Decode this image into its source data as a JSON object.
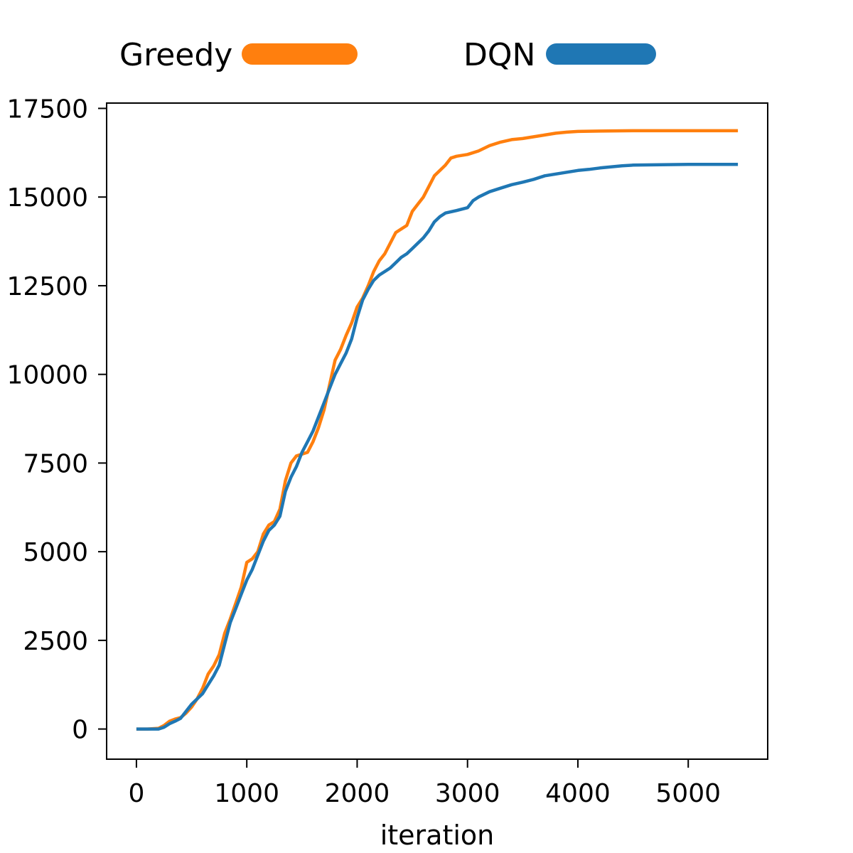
{
  "chart_data": {
    "type": "line",
    "title": "",
    "xlabel": "iteration",
    "ylabel": "",
    "xlim": [
      -270,
      5720
    ],
    "ylim": [
      -850,
      17650
    ],
    "xticks": [
      0,
      1000,
      2000,
      3000,
      4000,
      5000
    ],
    "yticks": [
      0,
      2500,
      5000,
      7500,
      10000,
      12500,
      15000,
      17500
    ],
    "grid": false,
    "legend": "top, outside plot area, horizontal",
    "series": [
      {
        "name": "Greedy",
        "color": "#ff7f0e",
        "points": [
          [
            0,
            0
          ],
          [
            100,
            0
          ],
          [
            200,
            20
          ],
          [
            250,
            100
          ],
          [
            300,
            220
          ],
          [
            350,
            280
          ],
          [
            400,
            320
          ],
          [
            450,
            450
          ],
          [
            500,
            620
          ],
          [
            550,
            850
          ],
          [
            600,
            1150
          ],
          [
            650,
            1550
          ],
          [
            700,
            1780
          ],
          [
            750,
            2100
          ],
          [
            800,
            2700
          ],
          [
            850,
            3100
          ],
          [
            900,
            3550
          ],
          [
            950,
            4000
          ],
          [
            1000,
            4700
          ],
          [
            1050,
            4800
          ],
          [
            1100,
            5000
          ],
          [
            1150,
            5500
          ],
          [
            1200,
            5750
          ],
          [
            1250,
            5850
          ],
          [
            1300,
            6200
          ],
          [
            1350,
            7000
          ],
          [
            1400,
            7500
          ],
          [
            1450,
            7700
          ],
          [
            1500,
            7750
          ],
          [
            1550,
            7800
          ],
          [
            1600,
            8100
          ],
          [
            1650,
            8500
          ],
          [
            1700,
            9000
          ],
          [
            1750,
            9700
          ],
          [
            1800,
            10400
          ],
          [
            1850,
            10700
          ],
          [
            1900,
            11100
          ],
          [
            1950,
            11450
          ],
          [
            2000,
            11900
          ],
          [
            2050,
            12150
          ],
          [
            2100,
            12500
          ],
          [
            2150,
            12900
          ],
          [
            2200,
            13200
          ],
          [
            2250,
            13400
          ],
          [
            2300,
            13700
          ],
          [
            2350,
            14000
          ],
          [
            2400,
            14100
          ],
          [
            2450,
            14200
          ],
          [
            2500,
            14600
          ],
          [
            2550,
            14800
          ],
          [
            2600,
            15000
          ],
          [
            2650,
            15300
          ],
          [
            2700,
            15600
          ],
          [
            2750,
            15750
          ],
          [
            2800,
            15900
          ],
          [
            2850,
            16100
          ],
          [
            2900,
            16150
          ],
          [
            3000,
            16200
          ],
          [
            3100,
            16300
          ],
          [
            3200,
            16450
          ],
          [
            3300,
            16550
          ],
          [
            3400,
            16620
          ],
          [
            3500,
            16650
          ],
          [
            3600,
            16700
          ],
          [
            3700,
            16750
          ],
          [
            3800,
            16800
          ],
          [
            3900,
            16830
          ],
          [
            4000,
            16850
          ],
          [
            4200,
            16860
          ],
          [
            4500,
            16870
          ],
          [
            5000,
            16870
          ],
          [
            5450,
            16870
          ]
        ]
      },
      {
        "name": "DQN",
        "color": "#1f77b4",
        "points": [
          [
            0,
            0
          ],
          [
            100,
            0
          ],
          [
            200,
            0
          ],
          [
            250,
            50
          ],
          [
            300,
            150
          ],
          [
            350,
            220
          ],
          [
            400,
            300
          ],
          [
            450,
            500
          ],
          [
            500,
            700
          ],
          [
            550,
            850
          ],
          [
            600,
            1000
          ],
          [
            650,
            1250
          ],
          [
            700,
            1500
          ],
          [
            750,
            1800
          ],
          [
            800,
            2400
          ],
          [
            850,
            3000
          ],
          [
            900,
            3400
          ],
          [
            950,
            3800
          ],
          [
            1000,
            4200
          ],
          [
            1050,
            4500
          ],
          [
            1100,
            4900
          ],
          [
            1150,
            5300
          ],
          [
            1200,
            5600
          ],
          [
            1250,
            5750
          ],
          [
            1300,
            6000
          ],
          [
            1350,
            6700
          ],
          [
            1400,
            7100
          ],
          [
            1450,
            7400
          ],
          [
            1500,
            7800
          ],
          [
            1550,
            8100
          ],
          [
            1600,
            8400
          ],
          [
            1650,
            8800
          ],
          [
            1700,
            9200
          ],
          [
            1750,
            9600
          ],
          [
            1800,
            10000
          ],
          [
            1850,
            10300
          ],
          [
            1900,
            10600
          ],
          [
            1950,
            11000
          ],
          [
            2000,
            11600
          ],
          [
            2050,
            12100
          ],
          [
            2100,
            12400
          ],
          [
            2150,
            12650
          ],
          [
            2200,
            12800
          ],
          [
            2250,
            12900
          ],
          [
            2300,
            13000
          ],
          [
            2350,
            13150
          ],
          [
            2400,
            13300
          ],
          [
            2450,
            13400
          ],
          [
            2500,
            13550
          ],
          [
            2550,
            13700
          ],
          [
            2600,
            13850
          ],
          [
            2650,
            14050
          ],
          [
            2700,
            14300
          ],
          [
            2750,
            14450
          ],
          [
            2800,
            14550
          ],
          [
            2900,
            14620
          ],
          [
            3000,
            14700
          ],
          [
            3050,
            14900
          ],
          [
            3100,
            15000
          ],
          [
            3200,
            15150
          ],
          [
            3300,
            15250
          ],
          [
            3400,
            15350
          ],
          [
            3500,
            15420
          ],
          [
            3600,
            15500
          ],
          [
            3700,
            15600
          ],
          [
            3800,
            15650
          ],
          [
            3900,
            15700
          ],
          [
            4000,
            15750
          ],
          [
            4100,
            15780
          ],
          [
            4200,
            15820
          ],
          [
            4300,
            15850
          ],
          [
            4400,
            15880
          ],
          [
            4500,
            15900
          ],
          [
            5000,
            15920
          ],
          [
            5450,
            15920
          ]
        ]
      }
    ]
  }
}
